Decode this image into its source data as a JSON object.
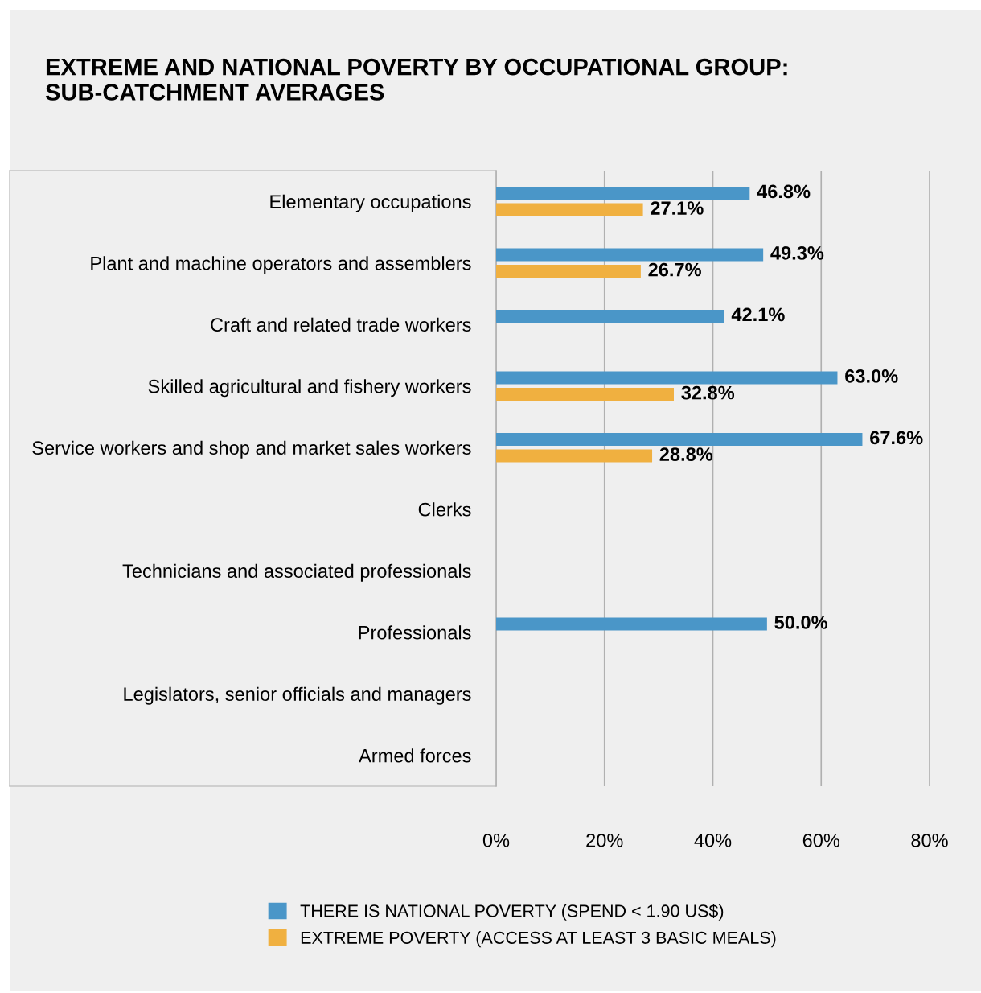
{
  "chart_data": {
    "type": "bar",
    "orientation": "horizontal",
    "title": "EXTREME AND NATIONAL POVERTY BY OCCUPATIONAL GROUP:\nSUB-CATCHMENT AVERAGES",
    "categories": [
      "Elementary occupations",
      "Plant and machine operators and assemblers",
      "Craft and related trade workers",
      "Skilled agricultural and fishery workers",
      "Service workers and shop and market sales workers",
      "Clerks",
      "Technicians and associated professionals",
      "Professionals",
      "Legislators, senior officials and managers",
      "Armed forces"
    ],
    "series": [
      {
        "name": "THERE IS NATIONAL POVERTY (SPEND < 1.90 US$)",
        "color": "#4a96c8",
        "values": [
          46.8,
          49.3,
          42.1,
          63.0,
          67.6,
          null,
          null,
          50.0,
          null,
          null
        ],
        "value_labels": [
          "46.8%",
          "49.3%",
          "42.1%",
          "63.0%",
          "67.6%",
          null,
          null,
          "50.0%",
          null,
          null
        ]
      },
      {
        "name": "EXTREME POVERTY (ACCESS AT LEAST 3 BASIC MEALS)",
        "color": "#f0b040",
        "values": [
          27.1,
          26.7,
          null,
          32.8,
          28.8,
          null,
          null,
          null,
          null,
          null
        ],
        "value_labels": [
          "27.1%",
          "26.7%",
          null,
          "32.8%",
          "28.8%",
          null,
          null,
          null,
          null,
          null
        ]
      }
    ],
    "xlim": [
      0,
      80
    ],
    "xticks": [
      {
        "value": 0,
        "label": "0%"
      },
      {
        "value": 20,
        "label": "20%"
      },
      {
        "value": 40,
        "label": "40%"
      },
      {
        "value": 60,
        "label": "60%"
      },
      {
        "value": 80,
        "label": "80%"
      }
    ],
    "grid": "x",
    "legend": "bottom"
  }
}
